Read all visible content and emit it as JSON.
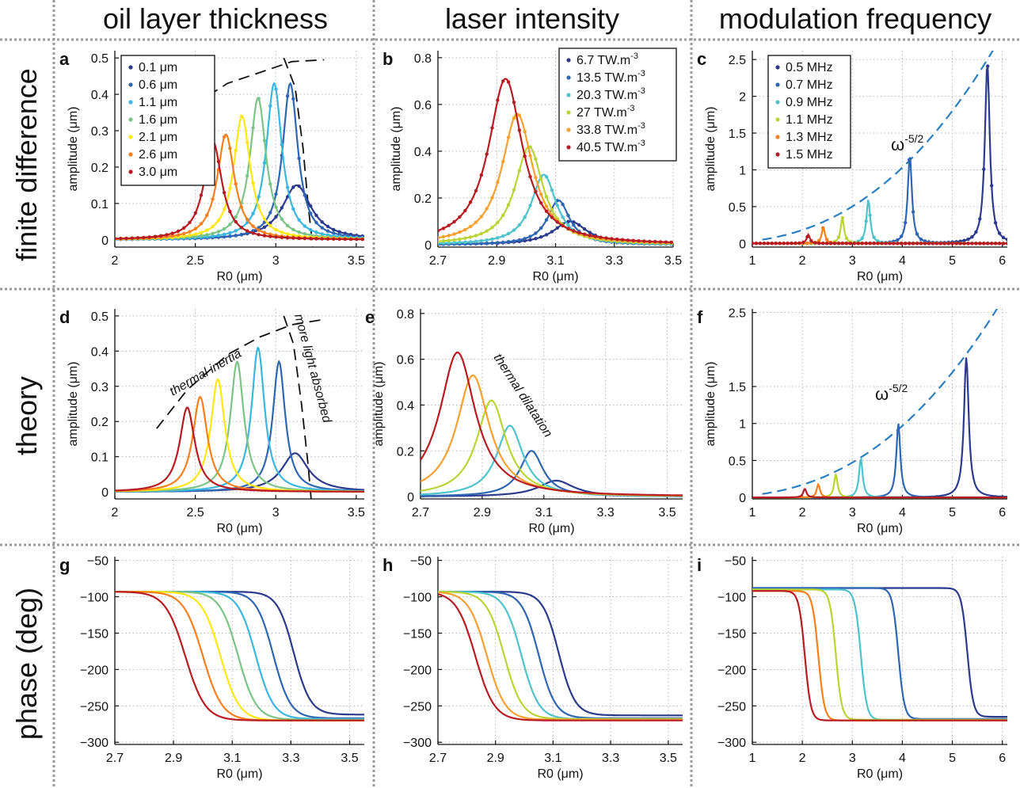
{
  "column_titles": [
    "oil layer thickness",
    "laser intensity",
    "modulation frequency"
  ],
  "row_titles": [
    "finite difference",
    "theory",
    "phase (deg)"
  ],
  "colors": [
    "#2b3a8c",
    "#2f66b3",
    "#3ab6df",
    "#7cc486",
    "#ffe712",
    "#f7801c",
    "#b81c22"
  ],
  "colors_b": [
    "#2b3a8c",
    "#2f66b3",
    "#4ec3cc",
    "#b9d535",
    "#f9a030",
    "#b81c22"
  ],
  "colors_c": [
    "#2b3a8c",
    "#2f66b3",
    "#4ec3cc",
    "#b9d535",
    "#f7801c",
    "#b81c22"
  ],
  "chart_data": [
    {
      "id": "a",
      "type": "line",
      "panel_label": "a",
      "xlabel": "R0 (μm)",
      "ylabel": "amplitude (μm)",
      "xlim": [
        2,
        3.55
      ],
      "ylim": [
        -0.02,
        0.52
      ],
      "xticks": [
        2,
        2.5,
        3,
        3.5
      ],
      "xtick_labels": [
        "2",
        "2.5",
        "3",
        "3.5"
      ],
      "yticks": [
        0,
        0.1,
        0.2,
        0.3,
        0.4,
        0.5
      ],
      "ytick_labels": [
        "0",
        "0.1",
        "0.2",
        "0.3",
        "0.4",
        "0.5"
      ],
      "markers": true,
      "legend_position": "top-left",
      "legend": [
        "0.1 μm",
        "0.6 μm",
        "1.1 μm",
        "1.6 μm",
        "2.1 μm",
        "2.6 μm",
        "3.0 μm"
      ],
      "peaks": [
        {
          "x": 3.13,
          "y": 0.15
        },
        {
          "x": 3.09,
          "y": 0.43
        },
        {
          "x": 2.99,
          "y": 0.43
        },
        {
          "x": 2.89,
          "y": 0.39
        },
        {
          "x": 2.79,
          "y": 0.34
        },
        {
          "x": 2.69,
          "y": 0.29
        },
        {
          "x": 2.61,
          "y": 0.27
        }
      ],
      "envelope": [
        [
          2.27,
          0.265
        ],
        [
          2.45,
          0.36
        ],
        [
          2.7,
          0.43
        ],
        [
          2.9,
          0.46
        ],
        [
          3.1,
          0.49
        ],
        [
          3.3,
          0.495
        ]
      ],
      "boundary": [
        [
          3.05,
          0.5
        ],
        [
          3.12,
          0.42
        ],
        [
          3.17,
          0.25
        ],
        [
          3.2,
          0.1
        ],
        [
          3.23,
          -0.02
        ]
      ]
    },
    {
      "id": "b",
      "type": "line",
      "panel_label": "b",
      "xlabel": "R0 (μm)",
      "ylabel": "amplitude (μm)",
      "xlim": [
        2.7,
        3.5
      ],
      "ylim": [
        -0.01,
        0.83
      ],
      "xticks": [
        2.7,
        2.9,
        3.1,
        3.3,
        3.5
      ],
      "xtick_labels": [
        "2.7",
        "2.9",
        "3.1",
        "3.3",
        "3.5"
      ],
      "yticks": [
        0,
        0.2,
        0.4,
        0.6,
        0.8
      ],
      "ytick_labels": [
        "0",
        "0.2",
        "0.4",
        "0.6",
        "0.8"
      ],
      "markers": true,
      "legend_position": "top-right",
      "legend": [
        "6.7 TW.m",
        "13.5 TW.m",
        "20.3 TW.m",
        "27 TW.m",
        "33.8 TW.m",
        "40.5 TW.m"
      ],
      "legend_sup": "-3",
      "peaks": [
        {
          "x": 3.15,
          "y": 0.1
        },
        {
          "x": 3.11,
          "y": 0.19
        },
        {
          "x": 3.06,
          "y": 0.3
        },
        {
          "x": 3.01,
          "y": 0.42
        },
        {
          "x": 2.97,
          "y": 0.56
        },
        {
          "x": 2.93,
          "y": 0.71
        }
      ]
    },
    {
      "id": "c",
      "type": "line",
      "panel_label": "c",
      "xlabel": "R0 (μm)",
      "ylabel": "amplitude (μm)",
      "xlim": [
        1,
        6.1
      ],
      "ylim": [
        -0.05,
        2.62
      ],
      "xticks": [
        1,
        2,
        3,
        4,
        5,
        6
      ],
      "xtick_labels": [
        "1",
        "2",
        "3",
        "4",
        "5",
        "6"
      ],
      "yticks": [
        0,
        0.5,
        1,
        1.5,
        2,
        2.5
      ],
      "ytick_labels": [
        "0",
        "0.5",
        "1",
        "1.5",
        "2",
        "2.5"
      ],
      "markers": true,
      "legend_position": "top-left",
      "legend": [
        "0.5 MHz",
        "0.7 MHz",
        "0.9 MHz",
        "1.1 MHz",
        "1.3 MHz",
        "1.5 MHz"
      ],
      "annotation": "ω",
      "annotation_sup": "-5/2",
      "peaks": [
        {
          "x": 5.7,
          "y": 2.45
        },
        {
          "x": 4.15,
          "y": 1.2
        },
        {
          "x": 3.32,
          "y": 0.6
        },
        {
          "x": 2.8,
          "y": 0.35
        },
        {
          "x": 2.42,
          "y": 0.22
        },
        {
          "x": 2.12,
          "y": 0.12
        }
      ]
    },
    {
      "id": "d",
      "type": "line",
      "panel_label": "d",
      "xlabel": "R0 (μm)",
      "ylabel": "amplitude (μm)",
      "xlim": [
        2,
        3.55
      ],
      "ylim": [
        -0.02,
        0.52
      ],
      "xticks": [
        2,
        2.5,
        3,
        3.5
      ],
      "xtick_labels": [
        "2",
        "2.5",
        "3",
        "3.5"
      ],
      "yticks": [
        0,
        0.1,
        0.2,
        0.3,
        0.4,
        0.5
      ],
      "ytick_labels": [
        "0",
        "0.1",
        "0.2",
        "0.3",
        "0.4",
        "0.5"
      ],
      "markers": false,
      "annotations": [
        "thermal inertia",
        "more light absorbed"
      ],
      "peaks": [
        {
          "x": 3.12,
          "y": 0.11
        },
        {
          "x": 3.02,
          "y": 0.37
        },
        {
          "x": 2.89,
          "y": 0.41
        },
        {
          "x": 2.76,
          "y": 0.37
        },
        {
          "x": 2.64,
          "y": 0.32
        },
        {
          "x": 2.53,
          "y": 0.27
        },
        {
          "x": 2.45,
          "y": 0.24
        }
      ],
      "envelope": [
        [
          2.26,
          0.18
        ],
        [
          2.45,
          0.29
        ],
        [
          2.7,
          0.39
        ],
        [
          2.9,
          0.44
        ],
        [
          3.1,
          0.475
        ],
        [
          3.3,
          0.49
        ]
      ],
      "boundary": [
        [
          3.05,
          0.5
        ],
        [
          3.11,
          0.42
        ],
        [
          3.16,
          0.25
        ],
        [
          3.2,
          0.08
        ],
        [
          3.22,
          -0.02
        ]
      ]
    },
    {
      "id": "e",
      "type": "line",
      "panel_label": "e",
      "xlabel": "R0 (μm)",
      "ylabel": "amplitude (μm)",
      "xlim": [
        2.7,
        3.55
      ],
      "ylim": [
        -0.01,
        0.82
      ],
      "xticks": [
        2.7,
        2.9,
        3.1,
        3.3,
        3.5
      ],
      "xtick_labels": [
        "2.7",
        "2.9",
        "3.1",
        "3.3",
        "3.5"
      ],
      "yticks": [
        0,
        0.2,
        0.4,
        0.6,
        0.8
      ],
      "ytick_labels": [
        "0",
        "0.2",
        "0.4",
        "0.6",
        "0.8"
      ],
      "markers": false,
      "annotation": "thermal dilatation",
      "peaks": [
        {
          "x": 3.14,
          "y": 0.07
        },
        {
          "x": 3.06,
          "y": 0.2
        },
        {
          "x": 2.99,
          "y": 0.31
        },
        {
          "x": 2.93,
          "y": 0.42
        },
        {
          "x": 2.87,
          "y": 0.53
        },
        {
          "x": 2.82,
          "y": 0.63
        }
      ]
    },
    {
      "id": "f",
      "type": "line",
      "panel_label": "f",
      "xlabel": "R0 (μm)",
      "ylabel": "amplitude (μm)",
      "xlim": [
        1,
        6.1
      ],
      "ylim": [
        -0.02,
        2.55
      ],
      "xticks": [
        1,
        2,
        3,
        4,
        5,
        6
      ],
      "xtick_labels": [
        "1",
        "2",
        "3",
        "4",
        "5",
        "6"
      ],
      "yticks": [
        0,
        0.5,
        1,
        1.5,
        2.5
      ],
      "ytick_labels": [
        "0",
        "0.5",
        "1",
        "1.5",
        "2.5"
      ],
      "markers": false,
      "annotation": "ω",
      "annotation_sup": "-5/2",
      "peaks": [
        {
          "x": 5.28,
          "y": 1.9
        },
        {
          "x": 3.92,
          "y": 1.0
        },
        {
          "x": 3.17,
          "y": 0.53
        },
        {
          "x": 2.67,
          "y": 0.32
        },
        {
          "x": 2.32,
          "y": 0.18
        },
        {
          "x": 2.05,
          "y": 0.12
        }
      ]
    },
    {
      "id": "g",
      "type": "line",
      "panel_label": "g",
      "xlabel": "R0 (μm)",
      "ylabel": "",
      "xlim": [
        2.7,
        3.55
      ],
      "ylim": [
        -303,
        -45
      ],
      "xticks": [
        2.7,
        2.9,
        3.1,
        3.3,
        3.5
      ],
      "xtick_labels": [
        "2.7",
        "2.9",
        "3.1",
        "3.3",
        "3.5"
      ],
      "yticks": [
        -300,
        -250,
        -200,
        -150,
        -100,
        -50
      ],
      "ytick_labels": [
        "−300",
        "−250",
        "−200",
        "−150",
        "−100",
        "−50"
      ],
      "centers": [
        3.31,
        3.24,
        3.18,
        3.12,
        3.06,
        3.0,
        2.94
      ],
      "start": [
        -93,
        -93,
        -93,
        -93,
        -93,
        -93,
        -93
      ],
      "end": [
        -262,
        -267,
        -268,
        -269,
        -270,
        -270,
        -270
      ]
    },
    {
      "id": "h",
      "type": "line",
      "panel_label": "h",
      "xlabel": "R0 (μm)",
      "ylabel": "",
      "xlim": [
        2.7,
        3.55
      ],
      "ylim": [
        -303,
        -45
      ],
      "xticks": [
        2.7,
        2.9,
        3.1,
        3.3,
        3.5
      ],
      "xtick_labels": [
        "2.7",
        "2.9",
        "3.1",
        "3.3",
        "3.5"
      ],
      "yticks": [
        -300,
        -250,
        -200,
        -150,
        -100,
        -50
      ],
      "ytick_labels": [
        "−300",
        "−250",
        "−200",
        "−150",
        "−100",
        "−50"
      ],
      "centers": [
        3.12,
        3.05,
        2.99,
        2.93,
        2.87,
        2.83
      ],
      "start": [
        -93,
        -93,
        -93,
        -93,
        -93,
        -93
      ],
      "end": [
        -263,
        -267,
        -268,
        -268,
        -269,
        -270
      ]
    },
    {
      "id": "i",
      "type": "line",
      "panel_label": "i",
      "xlabel": "R0 (μm)",
      "ylabel": "",
      "xlim": [
        1,
        6.1
      ],
      "ylim": [
        -303,
        -45
      ],
      "xticks": [
        1,
        2,
        3,
        4,
        5,
        6
      ],
      "xtick_labels": [
        "1",
        "2",
        "3",
        "4",
        "5",
        "6"
      ],
      "yticks": [
        -300,
        -250,
        -200,
        -150,
        -100,
        -50
      ],
      "ytick_labels": [
        "−300",
        "−250",
        "−200",
        "−150",
        "−100",
        "−50"
      ],
      "centers": [
        5.3,
        3.92,
        3.17,
        2.67,
        2.32,
        2.05
      ],
      "start": [
        -88,
        -88,
        -90,
        -90,
        -92,
        -92
      ],
      "end": [
        -265,
        -268,
        -269,
        -269,
        -270,
        -270
      ]
    }
  ]
}
